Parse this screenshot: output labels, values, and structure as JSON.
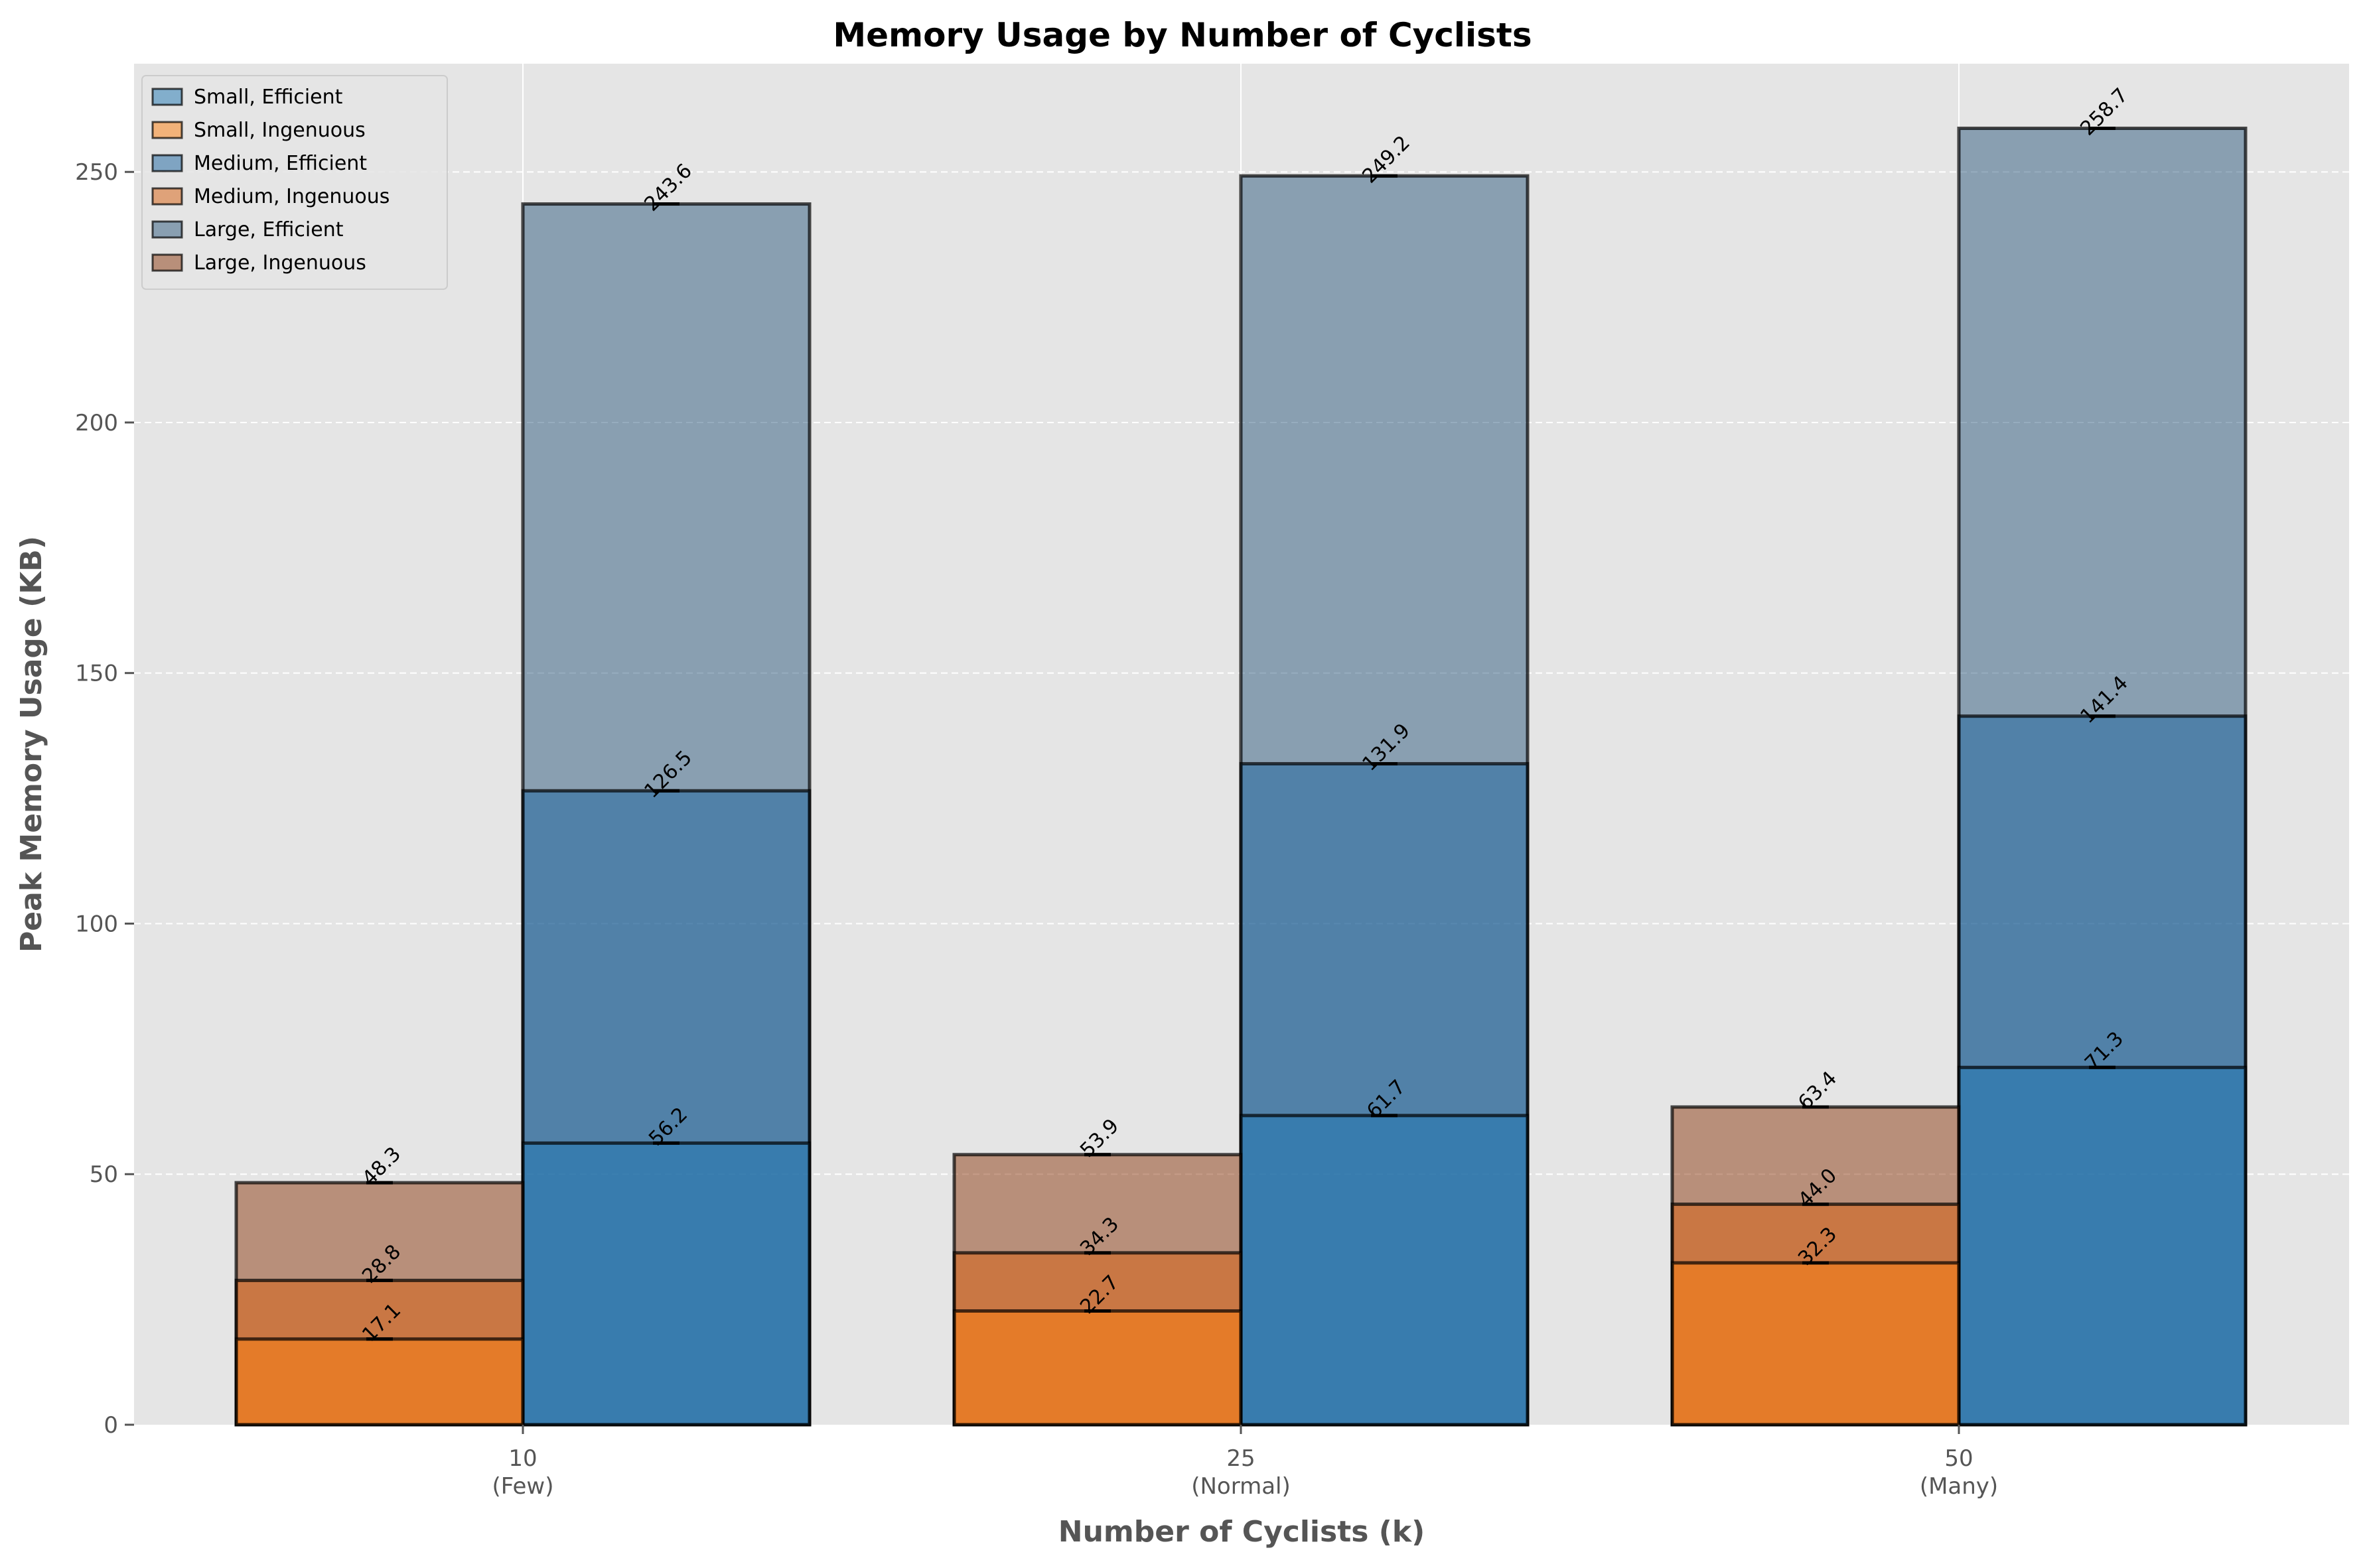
{
  "chart_data": {
    "type": "bar",
    "title": "Memory Usage by Number of Cyclists",
    "xlabel": "Number of Cyclists (k)",
    "ylabel": "Peak Memory Usage (KB)",
    "categories": [
      "10",
      "25",
      "50"
    ],
    "category_sublabels": [
      "(Few)",
      "(Normal)",
      "(Many)"
    ],
    "ylim": [
      0,
      271.6
    ],
    "yticks": [
      0,
      50,
      100,
      150,
      200,
      250
    ],
    "grid": true,
    "legend_position": "top-left",
    "bars_overlap": true,
    "series": [
      {
        "name": "Small, Efficient",
        "group": "Efficient",
        "values": [
          56.2,
          61.7,
          71.3
        ],
        "color": "#1f77b4"
      },
      {
        "name": "Small, Ingenuous",
        "group": "Ingenuous",
        "values": [
          17.1,
          22.7,
          32.3
        ],
        "color": "#ff7f0e"
      },
      {
        "name": "Medium, Efficient",
        "group": "Efficient",
        "values": [
          126.5,
          131.9,
          141.4
        ],
        "color": "#1a64a0"
      },
      {
        "name": "Medium, Ingenuous",
        "group": "Ingenuous",
        "values": [
          28.8,
          34.3,
          44.0
        ],
        "color": "#d95f0e"
      },
      {
        "name": "Large, Efficient",
        "group": "Efficient",
        "values": [
          243.6,
          249.2,
          258.7
        ],
        "color": "#2e5a7e"
      },
      {
        "name": "Large, Ingenuous",
        "group": "Ingenuous",
        "values": [
          48.3,
          53.9,
          63.4
        ],
        "color": "#8b3a10"
      }
    ],
    "colors": {
      "plot_background": "#e5e5e5",
      "grid": "#ffffff",
      "edge": "#000000",
      "text": "#555555"
    }
  }
}
